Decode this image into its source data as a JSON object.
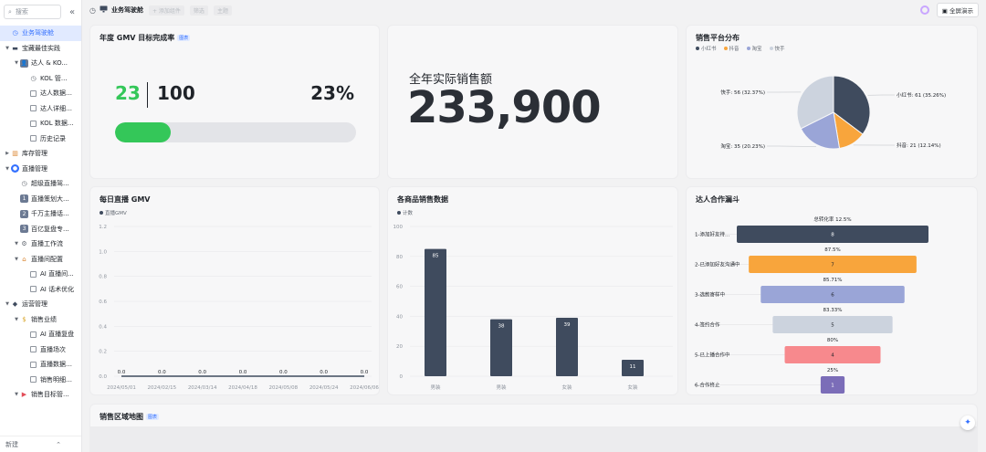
{
  "sidebar": {
    "search_placeholder": "搜索",
    "collapse_icon": "«",
    "items": [
      {
        "label": "业务驾驶舱",
        "level": 0,
        "caret": "",
        "icon": "dashboard",
        "active": true
      },
      {
        "label": "宝藏最佳实践",
        "level": 0,
        "caret": "▼",
        "icon": "chart"
      },
      {
        "label": "达人 & KO...",
        "level": 1,
        "caret": "▼",
        "icon": "person-badge"
      },
      {
        "label": "KOL 管...",
        "level": 2,
        "caret": "",
        "icon": "clock"
      },
      {
        "label": "达人数据列...",
        "level": 2,
        "caret": "",
        "icon": "table"
      },
      {
        "label": "达人详细信...",
        "level": 2,
        "caret": "",
        "icon": "table"
      },
      {
        "label": "KOL 数据...",
        "level": 2,
        "caret": "",
        "icon": "table"
      },
      {
        "label": "历史记录",
        "level": 2,
        "caret": "",
        "icon": "table"
      },
      {
        "label": "库存管理",
        "level": 0,
        "caret": "▶",
        "icon": "warehouse"
      },
      {
        "label": "直播管理",
        "level": 0,
        "caret": "▼",
        "icon": "live"
      },
      {
        "label": "超级直播驾...",
        "level": 1,
        "caret": "",
        "icon": "clock"
      },
      {
        "label": "直播策划大...",
        "level": 1,
        "caret": "",
        "icon": "num-1"
      },
      {
        "label": "千万主播话...",
        "level": 1,
        "caret": "",
        "icon": "num-2"
      },
      {
        "label": "百亿复盘专...",
        "level": 1,
        "caret": "",
        "icon": "num-3"
      },
      {
        "label": "直播工作流",
        "level": 1,
        "caret": "▼",
        "icon": "flow"
      },
      {
        "label": "直播间配置",
        "level": 1,
        "caret": "▼",
        "icon": "room"
      },
      {
        "label": "AI 直播间...",
        "level": 2,
        "caret": "",
        "icon": "table"
      },
      {
        "label": "AI 话术优化",
        "level": 2,
        "caret": "",
        "icon": "table"
      },
      {
        "label": "运营管理",
        "level": 0,
        "caret": "▼",
        "icon": "ops"
      },
      {
        "label": "销售业绩",
        "level": 1,
        "caret": "▼",
        "icon": "money"
      },
      {
        "label": "AI 直播复盘",
        "level": 2,
        "caret": "",
        "icon": "table"
      },
      {
        "label": "直播场次",
        "level": 2,
        "caret": "",
        "icon": "table"
      },
      {
        "label": "直播数据统...",
        "level": 2,
        "caret": "",
        "icon": "table"
      },
      {
        "label": "销售明细记...",
        "level": 2,
        "caret": "",
        "icon": "table"
      },
      {
        "label": "销售目标管...",
        "level": 1,
        "caret": "▼",
        "icon": "flag"
      }
    ],
    "footer_new": "新建",
    "footer_icon": "⌃"
  },
  "topbar": {
    "title": "业务驾驶舱",
    "buttons": [
      "+ 添加组件",
      "筛选",
      "主题"
    ],
    "fullscreen_label": "全屏演示"
  },
  "cards": {
    "gmv_target": {
      "title": "年度 GMV 目标完成率",
      "tag": "图表",
      "current": "23",
      "target": "100",
      "percent": "23%",
      "progress": 0.23,
      "bar_color": "#34c759"
    },
    "total_sales": {
      "label": "全年实际销售额",
      "value": "233,900"
    },
    "platform": {
      "title": "销售平台分布",
      "legend": [
        {
          "name": "小红书",
          "color": "#3f4b5e"
        },
        {
          "name": "抖音",
          "color": "#f8a53c"
        },
        {
          "name": "淘宝",
          "color": "#9aa5d7"
        },
        {
          "name": "快手",
          "color": "#ccd3de"
        }
      ],
      "slice_labels": [
        "小红书: 61 (35.26%)",
        "抖音: 21 (12.14%)",
        "淘宝: 35 (20.23%)",
        "快手: 56 (32.37%)"
      ]
    },
    "daily_gmv": {
      "title": "每日直播 GMV",
      "legend": "直播GMV",
      "y_ticks": [
        "1.2",
        "1.0",
        "0.8",
        "0.6",
        "0.4",
        "0.2",
        "0.0"
      ],
      "x_ticks": [
        "2024/05/01",
        "2024/02/15",
        "2024/03/14",
        "2024/04/18",
        "2024/05/08",
        "2024/05/24",
        "2024/06/06"
      ]
    },
    "products": {
      "title": "各商品销售数据",
      "legend": "计数",
      "y_ticks": [
        "100",
        "80",
        "60",
        "40",
        "20",
        "0"
      ]
    },
    "funnel": {
      "title": "达人合作漏斗",
      "total_rate": "总转化率 12.5%",
      "stages": [
        {
          "label": "1-添加好友待...",
          "value": 8,
          "color": "#3f4b5e",
          "rate": "87.5%"
        },
        {
          "label": "2-已添加好友沟通中",
          "value": 7,
          "color": "#f8a53c",
          "rate": "85.71%"
        },
        {
          "label": "3-选款寄样中",
          "value": 6,
          "color": "#9aa5d7",
          "rate": "83.33%"
        },
        {
          "label": "4-签约合作",
          "value": 5,
          "color": "#ccd3de",
          "rate": "80%"
        },
        {
          "label": "5-已上播合作中",
          "value": 4,
          "color": "#f7898d",
          "rate": "25%"
        },
        {
          "label": "6-合作终止",
          "value": 1,
          "color": "#7b6db8",
          "rate": ""
        }
      ]
    },
    "region_map": {
      "title": "销售区域地图",
      "tag": "图表"
    }
  },
  "chart_data": [
    {
      "type": "pie",
      "title": "销售平台分布",
      "categories": [
        "小红书",
        "抖音",
        "淘宝",
        "快手"
      ],
      "values": [
        61,
        21,
        35,
        56
      ],
      "percents": [
        "35.26%",
        "12.14%",
        "20.23%",
        "32.37%"
      ],
      "colors": [
        "#3f4b5e",
        "#f8a53c",
        "#9aa5d7",
        "#ccd3de"
      ],
      "legend_position": "top-left"
    },
    {
      "type": "line",
      "title": "每日直播 GMV",
      "x": [
        "2024/05/01",
        "2024/02/15",
        "2024/03/14",
        "2024/04/18",
        "2024/05/08",
        "2024/05/24",
        "2024/06/06"
      ],
      "series": [
        {
          "name": "直播GMV",
          "values": [
            0.0,
            0.0,
            0.0,
            0.0,
            0.0,
            0.0,
            0.0
          ]
        }
      ],
      "ylim": [
        0,
        1.2
      ],
      "grid": true
    },
    {
      "type": "bar",
      "title": "各商品销售数据",
      "categories": [
        "男装",
        "男装",
        "女装",
        "女装"
      ],
      "series": [
        {
          "name": "计数",
          "values": [
            85,
            38,
            39,
            11
          ]
        }
      ],
      "ylim": [
        0,
        100
      ],
      "color": "#3f4b5e",
      "grid": true
    }
  ]
}
